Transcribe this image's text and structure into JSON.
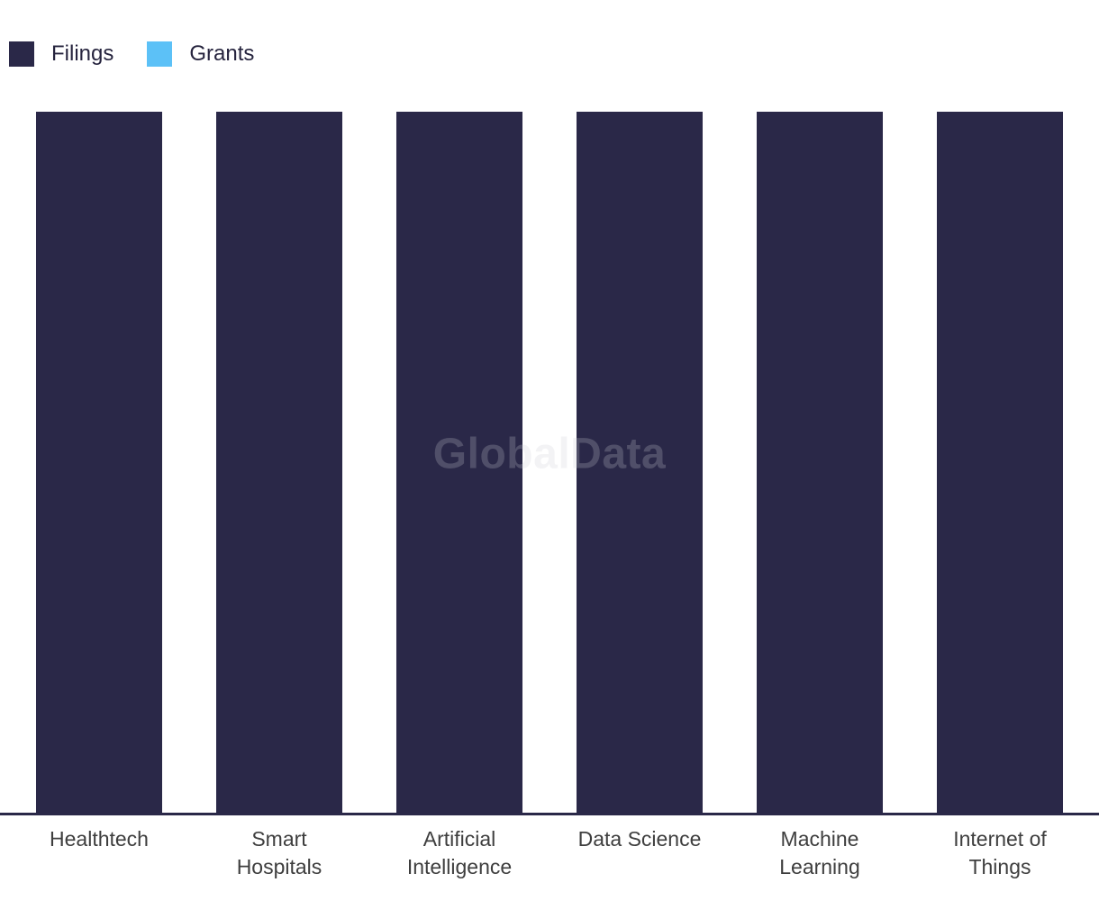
{
  "watermark": {
    "text": "GlobalData"
  },
  "legend": {
    "items": [
      {
        "label": "Filings",
        "color": "#2A2848"
      },
      {
        "label": "Grants",
        "color": "#5CC1F7"
      }
    ]
  },
  "colors": {
    "background": "#FFFFFF",
    "filings_bar": "#2A2848",
    "grants_bar": "#5CC1F7",
    "axis_line": "#2A2848",
    "label_text": "#3E3E3E",
    "watermark_text": "rgba(206,206,212,0.24)"
  },
  "chart_data": {
    "type": "bar",
    "stacked": true,
    "categories": [
      "Healthtech",
      "Smart Hospitals",
      "Artificial Intelligence",
      "Data Science",
      "Machine Learning",
      "Internet of Things"
    ],
    "series": [
      {
        "name": "Filings",
        "color": "#2A2848",
        "values": [
          100,
          100,
          100,
          100,
          100,
          100
        ]
      },
      {
        "name": "Grants",
        "color": "#5CC1F7",
        "values": [
          0,
          0,
          0,
          0,
          0,
          0
        ]
      }
    ],
    "title": "",
    "xlabel": "",
    "ylabel": "",
    "ylim": [
      0,
      100
    ],
    "y_axis_visible": false,
    "grid": false,
    "legend_position": "top-left"
  }
}
